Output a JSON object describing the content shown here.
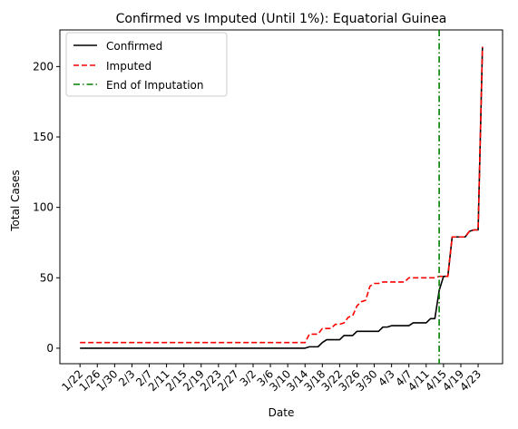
{
  "chart_data": {
    "type": "line",
    "title": "Confirmed vs Imputed (Until 1%): Equatorial Guinea",
    "xlabel": "Date",
    "ylabel": "Total Cases",
    "x_tick_labels": [
      "1/22",
      "1/26",
      "1/30",
      "2/3",
      "2/7",
      "2/11",
      "2/15",
      "2/19",
      "2/23",
      "2/27",
      "3/2",
      "3/6",
      "3/10",
      "3/14",
      "3/18",
      "3/22",
      "3/26",
      "3/30",
      "4/3",
      "4/7",
      "4/11",
      "4/15",
      "4/19",
      "4/23"
    ],
    "y_ticks": [
      0,
      50,
      100,
      150,
      200
    ],
    "ylim": [
      -11,
      226
    ],
    "grid": false,
    "legend_position": "upper-left",
    "colors": {
      "confirmed": "#000000",
      "imputed": "#ff0000",
      "end_of_imputation": "#008000"
    },
    "end_of_imputation": {
      "name": "End of Imputation",
      "date": "4/14"
    },
    "series": [
      {
        "name": "Confirmed",
        "style": "solid",
        "points": [
          [
            "1/22",
            0
          ],
          [
            "3/14",
            0
          ],
          [
            "3/15",
            1
          ],
          [
            "3/16",
            1
          ],
          [
            "3/17",
            1
          ],
          [
            "3/18",
            4
          ],
          [
            "3/19",
            6
          ],
          [
            "3/20",
            6
          ],
          [
            "3/21",
            6
          ],
          [
            "3/22",
            6
          ],
          [
            "3/23",
            9
          ],
          [
            "3/24",
            9
          ],
          [
            "3/25",
            9
          ],
          [
            "3/26",
            12
          ],
          [
            "3/27",
            12
          ],
          [
            "3/28",
            12
          ],
          [
            "3/29",
            12
          ],
          [
            "3/30",
            12
          ],
          [
            "3/31",
            12
          ],
          [
            "4/1",
            15
          ],
          [
            "4/2",
            15
          ],
          [
            "4/3",
            16
          ],
          [
            "4/4",
            16
          ],
          [
            "4/5",
            16
          ],
          [
            "4/6",
            16
          ],
          [
            "4/7",
            16
          ],
          [
            "4/8",
            18
          ],
          [
            "4/9",
            18
          ],
          [
            "4/10",
            18
          ],
          [
            "4/11",
            18
          ],
          [
            "4/12",
            21
          ],
          [
            "4/13",
            21
          ],
          [
            "4/14",
            41
          ],
          [
            "4/15",
            51
          ],
          [
            "4/16",
            51
          ],
          [
            "4/17",
            79
          ],
          [
            "4/18",
            79
          ],
          [
            "4/19",
            79
          ],
          [
            "4/20",
            79
          ],
          [
            "4/21",
            83
          ],
          [
            "4/22",
            84
          ],
          [
            "4/23",
            84
          ],
          [
            "4/24",
            214
          ]
        ]
      },
      {
        "name": "Imputed",
        "style": "dashed",
        "points": [
          [
            "1/22",
            4
          ],
          [
            "3/14",
            4
          ],
          [
            "3/15",
            10
          ],
          [
            "3/16",
            10
          ],
          [
            "3/17",
            10
          ],
          [
            "3/18",
            14
          ],
          [
            "3/19",
            14
          ],
          [
            "3/20",
            14
          ],
          [
            "3/21",
            17
          ],
          [
            "3/22",
            17
          ],
          [
            "3/23",
            18
          ],
          [
            "3/24",
            22
          ],
          [
            "3/25",
            23
          ],
          [
            "3/26",
            30
          ],
          [
            "3/27",
            33
          ],
          [
            "3/28",
            34
          ],
          [
            "3/29",
            44
          ],
          [
            "3/30",
            46
          ],
          [
            "3/31",
            46
          ],
          [
            "4/1",
            47
          ],
          [
            "4/2",
            47
          ],
          [
            "4/3",
            47
          ],
          [
            "4/4",
            47
          ],
          [
            "4/5",
            47
          ],
          [
            "4/6",
            47
          ],
          [
            "4/7",
            50
          ],
          [
            "4/8",
            50
          ],
          [
            "4/9",
            50
          ],
          [
            "4/10",
            50
          ],
          [
            "4/11",
            50
          ],
          [
            "4/12",
            50
          ],
          [
            "4/13",
            50
          ],
          [
            "4/14",
            51
          ],
          [
            "4/15",
            51
          ],
          [
            "4/16",
            51
          ],
          [
            "4/17",
            79
          ],
          [
            "4/18",
            79
          ],
          [
            "4/19",
            79
          ],
          [
            "4/20",
            79
          ],
          [
            "4/21",
            83
          ],
          [
            "4/22",
            84
          ],
          [
            "4/23",
            84
          ],
          [
            "4/24",
            214
          ]
        ]
      }
    ]
  }
}
